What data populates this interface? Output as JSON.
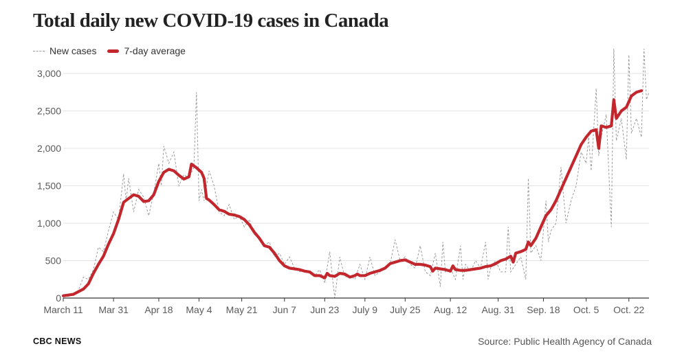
{
  "header": {
    "title": "Total daily new COVID-19 cases in Canada"
  },
  "legend": {
    "new_cases": "New cases",
    "average": "7-day average"
  },
  "footer": {
    "brand": "CBC NEWS",
    "source": "Source: Public Health Agency of Canada"
  },
  "colors": {
    "average": "#c1272d",
    "new_cases": "#9a9a9a",
    "grid": "#e3e3e3",
    "axis": "#333333"
  },
  "chart_data": {
    "type": "line",
    "title": "Total daily new COVID-19 cases in Canada",
    "xlabel": "",
    "ylabel": "",
    "ylim": [
      0,
      3000
    ],
    "yticks": [
      0,
      500,
      1000,
      1500,
      2000,
      2500,
      3000
    ],
    "ytick_labels": [
      "0",
      "500",
      "1,000",
      "1,500",
      "2,000",
      "2,500",
      "3,000"
    ],
    "xticks": [
      {
        "day": 0,
        "label": "March 11"
      },
      {
        "day": 20,
        "label": "Mar 31"
      },
      {
        "day": 38,
        "label": "Apr 18"
      },
      {
        "day": 54,
        "label": "May 4"
      },
      {
        "day": 71,
        "label": "May 21"
      },
      {
        "day": 88,
        "label": "Jun 7"
      },
      {
        "day": 104,
        "label": "Jun 23"
      },
      {
        "day": 120,
        "label": "July 9"
      },
      {
        "day": 136,
        "label": "July 25"
      },
      {
        "day": 154,
        "label": "Aug. 12"
      },
      {
        "day": 173,
        "label": "Aug. 31"
      },
      {
        "day": 191,
        "label": "Sep. 18"
      },
      {
        "day": 208,
        "label": "Oct. 5"
      },
      {
        "day": 225,
        "label": "Oct. 22"
      }
    ],
    "grid": true,
    "legend_position": "top-left",
    "series": [
      {
        "name": "New cases",
        "style": "dashed",
        "points": [
          [
            0,
            30
          ],
          [
            2,
            20
          ],
          [
            4,
            40
          ],
          [
            6,
            100
          ],
          [
            8,
            280
          ],
          [
            10,
            250
          ],
          [
            12,
            380
          ],
          [
            14,
            680
          ],
          [
            16,
            620
          ],
          [
            18,
            900
          ],
          [
            20,
            1150
          ],
          [
            22,
            1050
          ],
          [
            24,
            1660
          ],
          [
            25,
            1300
          ],
          [
            26,
            1600
          ],
          [
            28,
            1150
          ],
          [
            30,
            1450
          ],
          [
            32,
            1350
          ],
          [
            34,
            1100
          ],
          [
            36,
            1400
          ],
          [
            38,
            1800
          ],
          [
            39,
            1500
          ],
          [
            40,
            2030
          ],
          [
            42,
            1800
          ],
          [
            44,
            1950
          ],
          [
            46,
            1500
          ],
          [
            48,
            1650
          ],
          [
            50,
            1600
          ],
          [
            52,
            1750
          ],
          [
            53,
            2750
          ],
          [
            54,
            1300
          ],
          [
            55,
            1450
          ],
          [
            56,
            1300
          ],
          [
            58,
            1700
          ],
          [
            60,
            1500
          ],
          [
            62,
            1150
          ],
          [
            64,
            1100
          ],
          [
            66,
            1250
          ],
          [
            68,
            1050
          ],
          [
            70,
            1100
          ],
          [
            72,
            950
          ],
          [
            74,
            1050
          ],
          [
            76,
            850
          ],
          [
            78,
            800
          ],
          [
            80,
            700
          ],
          [
            82,
            750
          ],
          [
            84,
            550
          ],
          [
            86,
            600
          ],
          [
            88,
            450
          ],
          [
            90,
            550
          ],
          [
            92,
            400
          ],
          [
            94,
            350
          ],
          [
            96,
            380
          ],
          [
            98,
            330
          ],
          [
            100,
            300
          ],
          [
            102,
            380
          ],
          [
            104,
            200
          ],
          [
            106,
            620
          ],
          [
            107,
            300
          ],
          [
            108,
            0
          ],
          [
            110,
            550
          ],
          [
            112,
            280
          ],
          [
            114,
            300
          ],
          [
            116,
            250
          ],
          [
            118,
            450
          ],
          [
            120,
            250
          ],
          [
            122,
            550
          ],
          [
            124,
            300
          ],
          [
            126,
            350
          ],
          [
            128,
            400
          ],
          [
            130,
            450
          ],
          [
            132,
            780
          ],
          [
            134,
            500
          ],
          [
            136,
            550
          ],
          [
            138,
            450
          ],
          [
            140,
            400
          ],
          [
            142,
            700
          ],
          [
            144,
            350
          ],
          [
            146,
            300
          ],
          [
            148,
            600
          ],
          [
            150,
            150
          ],
          [
            151,
            750
          ],
          [
            152,
            350
          ],
          [
            154,
            400
          ],
          [
            156,
            250
          ],
          [
            158,
            700
          ],
          [
            159,
            250
          ],
          [
            160,
            450
          ],
          [
            162,
            350
          ],
          [
            164,
            500
          ],
          [
            166,
            400
          ],
          [
            168,
            750
          ],
          [
            169,
            250
          ],
          [
            170,
            400
          ],
          [
            172,
            500
          ],
          [
            174,
            350
          ],
          [
            176,
            350
          ],
          [
            177,
            950
          ],
          [
            178,
            350
          ],
          [
            180,
            450
          ],
          [
            182,
            550
          ],
          [
            184,
            250
          ],
          [
            185,
            1600
          ],
          [
            186,
            600
          ],
          [
            188,
            700
          ],
          [
            190,
            500
          ],
          [
            192,
            1300
          ],
          [
            193,
            750
          ],
          [
            194,
            900
          ],
          [
            196,
            1000
          ],
          [
            198,
            1750
          ],
          [
            200,
            1000
          ],
          [
            202,
            1300
          ],
          [
            204,
            1500
          ],
          [
            206,
            1950
          ],
          [
            208,
            1800
          ],
          [
            209,
            2150
          ],
          [
            210,
            1700
          ],
          [
            212,
            2800
          ],
          [
            213,
            1900
          ],
          [
            214,
            2150
          ],
          [
            216,
            2450
          ],
          [
            218,
            950
          ],
          [
            219,
            3400
          ],
          [
            220,
            2100
          ],
          [
            222,
            2400
          ],
          [
            224,
            1850
          ],
          [
            225,
            3250
          ],
          [
            226,
            2200
          ],
          [
            228,
            2400
          ],
          [
            230,
            2150
          ],
          [
            231,
            3400
          ],
          [
            232,
            2650
          ],
          [
            233,
            2750
          ]
        ]
      },
      {
        "name": "7-day average",
        "style": "solid",
        "points": [
          [
            0,
            30
          ],
          [
            4,
            50
          ],
          [
            8,
            120
          ],
          [
            10,
            190
          ],
          [
            12,
            330
          ],
          [
            14,
            450
          ],
          [
            16,
            560
          ],
          [
            18,
            720
          ],
          [
            20,
            860
          ],
          [
            22,
            1050
          ],
          [
            24,
            1280
          ],
          [
            26,
            1330
          ],
          [
            28,
            1380
          ],
          [
            30,
            1360
          ],
          [
            32,
            1290
          ],
          [
            34,
            1300
          ],
          [
            36,
            1380
          ],
          [
            38,
            1560
          ],
          [
            40,
            1680
          ],
          [
            42,
            1720
          ],
          [
            44,
            1700
          ],
          [
            46,
            1640
          ],
          [
            48,
            1590
          ],
          [
            50,
            1620
          ],
          [
            51,
            1790
          ],
          [
            53,
            1740
          ],
          [
            55,
            1680
          ],
          [
            56,
            1600
          ],
          [
            57,
            1330
          ],
          [
            58,
            1310
          ],
          [
            60,
            1250
          ],
          [
            62,
            1180
          ],
          [
            64,
            1160
          ],
          [
            66,
            1120
          ],
          [
            68,
            1110
          ],
          [
            70,
            1090
          ],
          [
            72,
            1050
          ],
          [
            74,
            980
          ],
          [
            76,
            880
          ],
          [
            78,
            800
          ],
          [
            80,
            700
          ],
          [
            82,
            680
          ],
          [
            84,
            600
          ],
          [
            86,
            500
          ],
          [
            88,
            430
          ],
          [
            90,
            400
          ],
          [
            92,
            390
          ],
          [
            94,
            380
          ],
          [
            96,
            360
          ],
          [
            98,
            350
          ],
          [
            100,
            300
          ],
          [
            102,
            300
          ],
          [
            104,
            270
          ],
          [
            105,
            330
          ],
          [
            106,
            300
          ],
          [
            108,
            290
          ],
          [
            110,
            330
          ],
          [
            112,
            320
          ],
          [
            114,
            280
          ],
          [
            116,
            300
          ],
          [
            117,
            320
          ],
          [
            118,
            300
          ],
          [
            120,
            300
          ],
          [
            122,
            330
          ],
          [
            124,
            350
          ],
          [
            126,
            370
          ],
          [
            128,
            400
          ],
          [
            130,
            460
          ],
          [
            132,
            480
          ],
          [
            134,
            500
          ],
          [
            136,
            510
          ],
          [
            138,
            480
          ],
          [
            140,
            450
          ],
          [
            142,
            450
          ],
          [
            144,
            440
          ],
          [
            146,
            420
          ],
          [
            147,
            360
          ],
          [
            148,
            400
          ],
          [
            150,
            390
          ],
          [
            152,
            380
          ],
          [
            154,
            360
          ],
          [
            155,
            430
          ],
          [
            156,
            380
          ],
          [
            158,
            370
          ],
          [
            160,
            370
          ],
          [
            162,
            380
          ],
          [
            164,
            390
          ],
          [
            166,
            400
          ],
          [
            168,
            420
          ],
          [
            170,
            430
          ],
          [
            172,
            460
          ],
          [
            174,
            500
          ],
          [
            176,
            520
          ],
          [
            178,
            560
          ],
          [
            179,
            480
          ],
          [
            180,
            600
          ],
          [
            182,
            620
          ],
          [
            184,
            650
          ],
          [
            185,
            750
          ],
          [
            186,
            700
          ],
          [
            188,
            800
          ],
          [
            190,
            950
          ],
          [
            192,
            1100
          ],
          [
            194,
            1180
          ],
          [
            196,
            1300
          ],
          [
            198,
            1450
          ],
          [
            200,
            1600
          ],
          [
            202,
            1750
          ],
          [
            204,
            1900
          ],
          [
            206,
            2050
          ],
          [
            208,
            2150
          ],
          [
            210,
            2230
          ],
          [
            212,
            2250
          ],
          [
            213,
            2000
          ],
          [
            214,
            2300
          ],
          [
            216,
            2280
          ],
          [
            218,
            2300
          ],
          [
            219,
            2650
          ],
          [
            220,
            2400
          ],
          [
            222,
            2500
          ],
          [
            224,
            2550
          ],
          [
            226,
            2700
          ],
          [
            228,
            2750
          ],
          [
            230,
            2770
          ]
        ]
      }
    ]
  }
}
